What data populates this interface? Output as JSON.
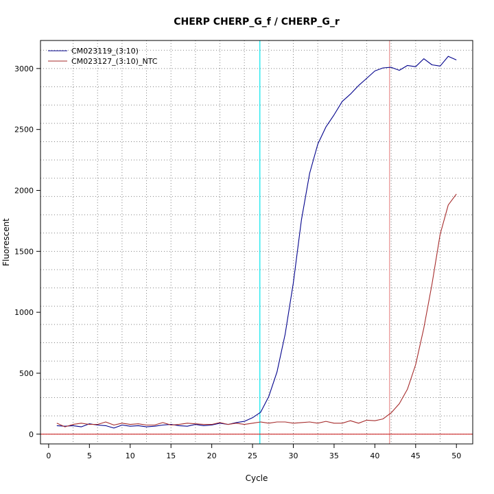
{
  "chart_data": {
    "type": "line",
    "title": "CHERP  CHERP_G_f / CHERP_G_r",
    "xlabel": "Cycle",
    "ylabel": "Fluorescent",
    "xlim": [
      -1,
      52
    ],
    "ylim": [
      -80,
      3230
    ],
    "x_ticks": [
      0,
      5,
      10,
      15,
      20,
      25,
      30,
      35,
      40,
      45,
      50
    ],
    "y_ticks": [
      0,
      500,
      1000,
      1500,
      2000,
      2500,
      3000
    ],
    "x_grid": [
      3,
      6,
      9,
      12,
      15,
      18,
      21,
      24,
      27,
      30,
      33,
      36,
      39,
      42,
      45,
      48
    ],
    "y_grid": [
      0,
      150,
      300,
      450,
      600,
      750,
      900,
      1050,
      1200,
      1350,
      1500,
      1650,
      1800,
      1950,
      2100,
      2250,
      2400,
      2550,
      2700,
      2850,
      3000,
      3150
    ],
    "grid": true,
    "legend_position": "top-left",
    "x": [
      1,
      2,
      3,
      4,
      5,
      6,
      7,
      8,
      9,
      10,
      11,
      12,
      13,
      14,
      15,
      16,
      17,
      18,
      19,
      20,
      21,
      22,
      23,
      24,
      25,
      26,
      27,
      28,
      29,
      30,
      31,
      32,
      33,
      34,
      35,
      36,
      37,
      38,
      39,
      40,
      41,
      42,
      43,
      44,
      45,
      46,
      47,
      48,
      49,
      50
    ],
    "series": [
      {
        "name": "CM023119_(3:10)",
        "color": "#00008B",
        "values": [
          70,
          65,
          70,
          60,
          85,
          75,
          70,
          50,
          75,
          65,
          70,
          60,
          65,
          75,
          80,
          70,
          65,
          80,
          70,
          75,
          90,
          80,
          95,
          105,
          135,
          180,
          310,
          510,
          820,
          1240,
          1760,
          2140,
          2380,
          2520,
          2620,
          2730,
          2790,
          2860,
          2920,
          2980,
          3005,
          3010,
          2985,
          3025,
          3015,
          3080,
          3030,
          3020,
          3100,
          3070
        ]
      },
      {
        "name": "CM023127_(3:10)_NTC",
        "color": "#A52A2A",
        "values": [
          90,
          60,
          80,
          90,
          80,
          80,
          100,
          75,
          90,
          80,
          85,
          75,
          75,
          95,
          75,
          80,
          90,
          85,
          80,
          80,
          95,
          80,
          90,
          80,
          90,
          100,
          90,
          100,
          100,
          90,
          95,
          100,
          90,
          105,
          90,
          90,
          110,
          90,
          115,
          110,
          125,
          175,
          250,
          370,
          570,
          870,
          1230,
          1640,
          1880,
          1970
        ]
      }
    ],
    "reference_lines": [
      {
        "axis": "x",
        "value": 25.9,
        "color": "#00E5EE"
      },
      {
        "axis": "x",
        "value": 41.8,
        "color": "#E89090"
      },
      {
        "axis": "y",
        "value": 0,
        "color": "#CC2222"
      }
    ]
  }
}
